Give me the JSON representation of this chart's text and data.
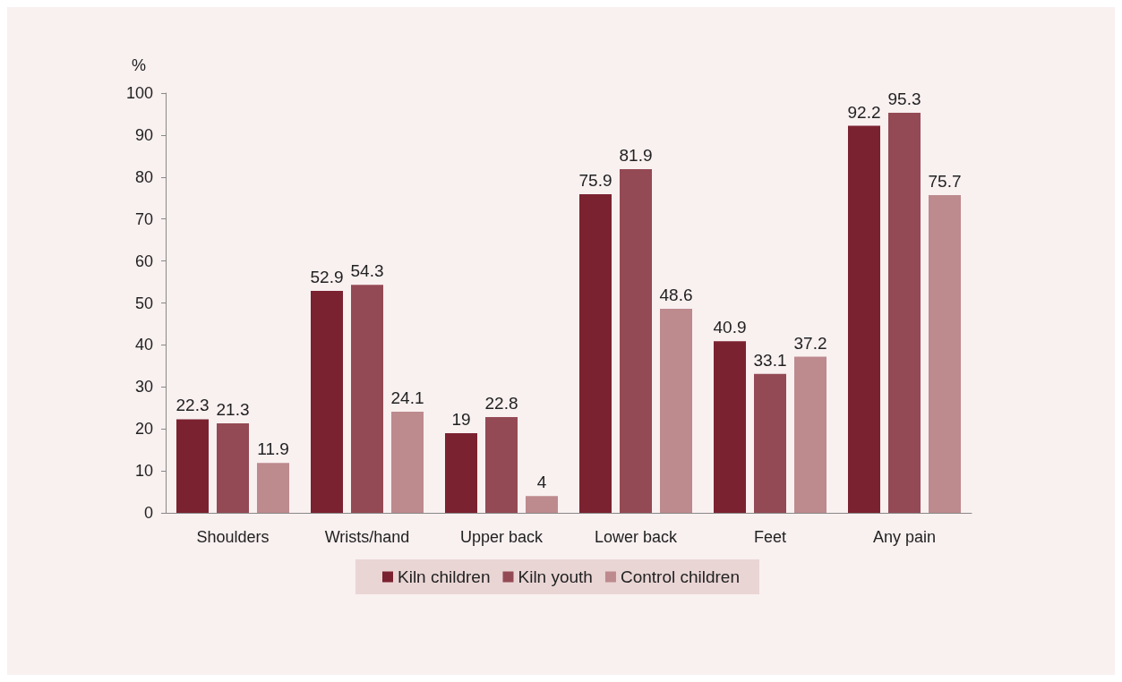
{
  "chart_data": {
    "type": "bar",
    "ylabel": "%",
    "categories": [
      "Shoulders",
      "Wrists/hand",
      "Upper back",
      "Lower back",
      "Feet",
      "Any pain"
    ],
    "series": [
      {
        "name": "Kiln children",
        "color": "#7b2230",
        "values": [
          22.3,
          52.9,
          19,
          75.9,
          40.9,
          92.2
        ]
      },
      {
        "name": "Kiln youth",
        "color": "#944a54",
        "values": [
          21.3,
          54.3,
          22.8,
          81.9,
          33.1,
          95.3
        ]
      },
      {
        "name": "Control children",
        "color": "#bd8a8e",
        "values": [
          11.9,
          24.1,
          4,
          48.6,
          37.2,
          75.7
        ]
      }
    ],
    "ylim": [
      0,
      100
    ],
    "yticks": [
      0,
      10,
      20,
      30,
      40,
      50,
      60,
      70,
      80,
      90,
      100
    ],
    "grid": false,
    "legend": "bottom",
    "data_labels": true
  }
}
